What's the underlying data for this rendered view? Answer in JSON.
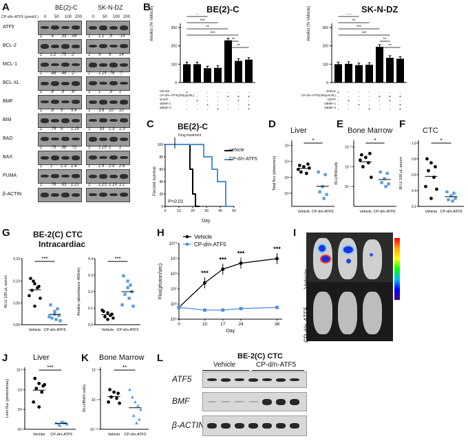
{
  "panels": {
    "A": {
      "letter": "A",
      "cell_lines": [
        "BE(2)-C",
        "SK-N-DZ"
      ],
      "dose_label": "CP-d/n-ATF5 (μmol/L)",
      "doses": [
        "0",
        "50",
        "100",
        "200"
      ],
      "rows": [
        {
          "name": "ATF5",
          "q1": [
            "1",
            ".6",
            ".33",
            ".05"
          ],
          "q2": [
            "1",
            "1.1",
            ".5",
            ".15"
          ]
        },
        {
          "name": "BCL-2",
          "q1": [
            "1",
            "1.2",
            ".75",
            ".2"
          ],
          "q2": [
            "1",
            "9",
            "9",
            "14"
          ]
        },
        {
          "name": "MCL-1",
          "q1": [
            "1",
            ".48",
            ".46",
            ".2"
          ],
          "q2": [
            "1",
            "1.15",
            ".76",
            ".7"
          ]
        },
        {
          "name": "BCL-XL",
          "q1": [
            "1",
            ".8",
            ".9",
            ".8"
          ],
          "q2": [
            "1",
            "1",
            ".9",
            "1"
          ]
        },
        {
          "name": "BMF",
          "q1": [
            "1",
            ".8",
            "5",
            "5.4"
          ],
          "q2": [
            "1",
            "3.6",
            "10",
            "10"
          ]
        },
        {
          "name": "BIM",
          "q1": [
            "1",
            ".75",
            "9",
            "1.15"
          ],
          "q2": [
            "1",
            ".93",
            "1.3",
            "1.3"
          ]
        },
        {
          "name": "BAD",
          "q1": [
            "1",
            ".75",
            ".96",
            ".72"
          ],
          "q2": [
            "1",
            "1.15",
            "1",
            "1"
          ]
        },
        {
          "name": "BAX",
          "q1": [
            "1",
            "1",
            "1.3",
            "1.4"
          ],
          "q2": [
            "1",
            "1.5",
            "2.9",
            "2.6"
          ]
        },
        {
          "name": "PUMA",
          "q1": [
            "1",
            ".76",
            ".93",
            "1.21"
          ],
          "q2": [
            "1",
            "1.23",
            "1.19",
            "1.1"
          ]
        },
        {
          "name": "β-ACTIN",
          "q1": [],
          "q2": []
        }
      ]
    },
    "B": {
      "letter": "B",
      "left_title": "BE(2)-C",
      "right_title": "SK-N-DZ",
      "ylabel": "Anoikis (% Vehicle)",
      "row_labels": [
        "Vehicle",
        "CP-d/n-ATF5(200μmol/L)",
        "siGFP",
        "siBMF-1",
        "siBMF-2"
      ],
      "sig": [
        "**",
        "***",
        "**",
        "***",
        "**",
        "**"
      ],
      "sig_right": [
        "****",
        "**",
        "***",
        "***",
        "**",
        "**"
      ]
    },
    "C": {
      "letter": "C",
      "title": "BE(2)-C",
      "ylabel": "Percent survival",
      "xlabel": "Day",
      "annotation": "Drug treatment",
      "pval": "P<0.01",
      "legend": [
        "vehicle",
        "CP-d/n-ATF5"
      ]
    },
    "D": {
      "letter": "D",
      "title": "Liver",
      "ylabel": "Total flux (photons/s)",
      "cats": [
        "Vehicle",
        "CP-d/n-ATF5"
      ],
      "sig": "*"
    },
    "E": {
      "letter": "E",
      "title": "Bone Marrow",
      "ylabel": "RLU/BM/cells",
      "cats": [
        "Vehicle",
        "CP-d/n-ATF5"
      ],
      "sig": "*"
    },
    "F": {
      "letter": "F",
      "title": "CTC",
      "ylabel": "RLU/ 100 μL serum",
      "cats": [
        "Vehicle",
        "CP-d/n-ATF5"
      ],
      "sig": "*"
    },
    "G": {
      "letter": "G",
      "title1": "BE-2(C) CTC",
      "title2": "Intracardiac",
      "ylabel1": "RLU/ 100 μL serum",
      "ylabel2": "Anoikis (absorbance 450nm)",
      "cats": [
        "Vehicle",
        "CP-d/n-ATF5"
      ],
      "sig": "***"
    },
    "H": {
      "letter": "H",
      "ylabel": "Flux(photon/sec)",
      "xlabel": "Day",
      "legend": [
        "Vehicle",
        "CP-d/n-ATF5"
      ],
      "sig": "***"
    },
    "I": {
      "letter": "I",
      "rows": [
        "Vehicle",
        "CP-d/n-ATF5"
      ]
    },
    "J": {
      "letter": "J",
      "title": "Liver",
      "ylabel": "Liver flux (photons/sec)",
      "cats": [
        "Vechile",
        "CP-d/n-ATF5"
      ],
      "sig": "***"
    },
    "K": {
      "letter": "K",
      "title": "Bone Marrow",
      "ylabel": "RLU/BM(# cells)",
      "cats": [
        "Vehicle",
        "CP-d/n-ATF5"
      ],
      "sig": "**"
    },
    "L": {
      "letter": "L",
      "title": "BE-2(C) CTC",
      "groups": [
        "Vehicle",
        "CP-d/n-ATF5"
      ],
      "rows": [
        "ATF5",
        "BMF",
        "β-ACTIN"
      ]
    }
  },
  "chart_data": [
    {
      "type": "bar",
      "panel": "B-left",
      "title": "BE(2)-C",
      "ylabel": "Anoikis (% Vehicle)",
      "ylim": [
        0,
        300
      ],
      "values": [
        100,
        100,
        78,
        80,
        230,
        118,
        125
      ]
    },
    {
      "type": "bar",
      "panel": "B-right",
      "title": "SK-N-DZ",
      "ylabel": "Anoikis (% Vehicle)",
      "ylim": [
        0,
        300
      ],
      "values": [
        100,
        102,
        95,
        97,
        195,
        135,
        130
      ]
    },
    {
      "type": "line",
      "panel": "C",
      "title": "BE(2)-C",
      "xlabel": "Day",
      "ylabel": "Percent survival",
      "x_ticks": [
        0,
        10,
        20,
        30,
        40,
        50
      ],
      "y_ticks": [
        0,
        20,
        40,
        60,
        80,
        100
      ],
      "series": [
        {
          "name": "vehicle",
          "x": [
            0,
            18,
            18,
            20,
            20,
            22,
            22,
            25
          ],
          "y": [
            100,
            100,
            60,
            60,
            20,
            20,
            0,
            0
          ]
        },
        {
          "name": "CP-d/n-ATF5",
          "x": [
            0,
            28,
            28,
            34,
            34,
            38,
            38,
            44,
            44,
            48
          ],
          "y": [
            100,
            100,
            80,
            80,
            60,
            60,
            40,
            40,
            0,
            0
          ]
        }
      ]
    },
    {
      "type": "line",
      "panel": "H",
      "xlabel": "Day",
      "ylabel": "Flux(photon/sec)",
      "x": [
        0,
        10,
        17,
        24,
        38
      ],
      "series": [
        {
          "name": "Vehicle",
          "values": [
            600000.0,
            25000000.0,
            200000000.0,
            500000000.0,
            1000000000.0
          ]
        },
        {
          "name": "CP-d/n-ATF5",
          "values": [
            600000.0,
            400000.0,
            400000.0,
            500000.0,
            600000.0
          ]
        }
      ]
    }
  ]
}
